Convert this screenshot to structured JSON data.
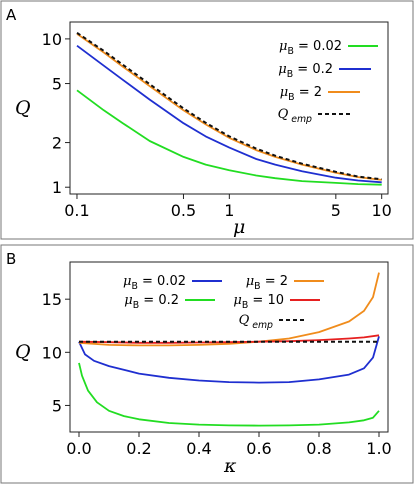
{
  "chart_data": [
    {
      "panel_label": "A",
      "type": "line",
      "xlabel": "μ",
      "ylabel": "Q",
      "x_scale": "log",
      "y_scale": "log",
      "xlim": [
        0.09,
        11
      ],
      "ylim": [
        0.9,
        13
      ],
      "x_ticks": [
        0.1,
        0.5,
        1,
        5,
        10
      ],
      "x_tick_labels": [
        "0.1",
        "0.5",
        "1",
        "5",
        "10"
      ],
      "y_ticks": [
        1,
        2,
        5,
        10
      ],
      "y_tick_labels": [
        "1",
        "2",
        "5",
        "10"
      ],
      "grid": false,
      "legend_position": "top-right",
      "series": [
        {
          "name": "μ_B = 0.02",
          "color": "#22dd22",
          "dashed": false,
          "x": [
            0.1,
            0.15,
            0.2,
            0.3,
            0.5,
            0.7,
            1,
            1.5,
            2,
            3,
            5,
            7,
            10
          ],
          "y": [
            4.5,
            3.3,
            2.7,
            2.05,
            1.6,
            1.42,
            1.3,
            1.2,
            1.15,
            1.1,
            1.07,
            1.05,
            1.04
          ]
        },
        {
          "name": "μ_B = 0.2",
          "color": "#1f2fd0",
          "dashed": false,
          "x": [
            0.1,
            0.15,
            0.2,
            0.3,
            0.5,
            0.7,
            1,
            1.5,
            2,
            3,
            5,
            7,
            10
          ],
          "y": [
            9.0,
            6.6,
            5.3,
            3.9,
            2.7,
            2.2,
            1.85,
            1.55,
            1.42,
            1.28,
            1.16,
            1.11,
            1.08
          ]
        },
        {
          "name": "μ_B = 2",
          "color": "#f08c1c",
          "dashed": false,
          "x": [
            0.1,
            0.15,
            0.2,
            0.3,
            0.5,
            0.7,
            1,
            1.5,
            2,
            3,
            5,
            7,
            10
          ],
          "y": [
            10.8,
            8.1,
            6.5,
            4.8,
            3.3,
            2.65,
            2.15,
            1.78,
            1.6,
            1.42,
            1.25,
            1.17,
            1.12
          ]
        },
        {
          "name": "Q emp",
          "color": "#111111",
          "dashed": true,
          "x": [
            0.1,
            0.15,
            0.2,
            0.3,
            0.5,
            0.7,
            1,
            1.5,
            2,
            3,
            5,
            7,
            10
          ],
          "y": [
            11.0,
            8.3,
            6.7,
            4.95,
            3.4,
            2.72,
            2.2,
            1.82,
            1.63,
            1.44,
            1.27,
            1.18,
            1.13
          ]
        }
      ]
    },
    {
      "panel_label": "B",
      "type": "line",
      "xlabel": "κ",
      "ylabel": "Q",
      "xlim": [
        -0.03,
        1.03
      ],
      "ylim": [
        2.5,
        18.5
      ],
      "x_ticks": [
        0.0,
        0.2,
        0.4,
        0.6,
        0.8,
        1.0
      ],
      "x_tick_labels": [
        "0.0",
        "0.2",
        "0.4",
        "0.6",
        "0.8",
        "1.0"
      ],
      "y_ticks": [
        5,
        10,
        15
      ],
      "y_tick_labels": [
        "5",
        "10",
        "15"
      ],
      "grid": false,
      "legend_position": "top",
      "series": [
        {
          "name": "μ_B = 0.02",
          "color": "#1f2fd0",
          "dashed": false,
          "x": [
            0.0,
            0.02,
            0.05,
            0.1,
            0.2,
            0.3,
            0.4,
            0.5,
            0.6,
            0.7,
            0.8,
            0.9,
            0.95,
            0.98,
            1.0
          ],
          "y": [
            11.0,
            9.8,
            9.2,
            8.7,
            8.0,
            7.6,
            7.35,
            7.2,
            7.15,
            7.2,
            7.45,
            7.9,
            8.5,
            9.5,
            11.5
          ]
        },
        {
          "name": "μ_B = 2",
          "color": "#f08c1c",
          "dashed": false,
          "x": [
            0.0,
            0.1,
            0.2,
            0.3,
            0.4,
            0.5,
            0.6,
            0.7,
            0.8,
            0.9,
            0.95,
            0.98,
            1.0
          ],
          "y": [
            10.9,
            10.7,
            10.65,
            10.65,
            10.7,
            10.8,
            11.0,
            11.3,
            11.9,
            12.9,
            13.9,
            15.2,
            17.5
          ]
        },
        {
          "name": "μ_B = 0.2",
          "color": "#22dd22",
          "dashed": false,
          "x": [
            0.0,
            0.01,
            0.03,
            0.06,
            0.1,
            0.15,
            0.2,
            0.3,
            0.4,
            0.5,
            0.6,
            0.7,
            0.8,
            0.9,
            0.95,
            0.98,
            1.0
          ],
          "y": [
            9.0,
            7.8,
            6.4,
            5.3,
            4.5,
            4.0,
            3.7,
            3.35,
            3.2,
            3.12,
            3.1,
            3.12,
            3.2,
            3.4,
            3.6,
            3.85,
            4.5
          ]
        },
        {
          "name": "μ_B = 10",
          "color": "#e62020",
          "dashed": false,
          "x": [
            0.0,
            0.1,
            0.2,
            0.3,
            0.4,
            0.5,
            0.6,
            0.7,
            0.8,
            0.9,
            0.95,
            1.0
          ],
          "y": [
            11.0,
            10.95,
            10.9,
            10.9,
            10.92,
            10.95,
            11.0,
            11.05,
            11.15,
            11.3,
            11.4,
            11.6
          ]
        },
        {
          "name": "Q emp",
          "color": "#111111",
          "dashed": true,
          "x": [
            0.0,
            1.0
          ],
          "y": [
            11.0,
            11.0
          ]
        }
      ]
    }
  ]
}
